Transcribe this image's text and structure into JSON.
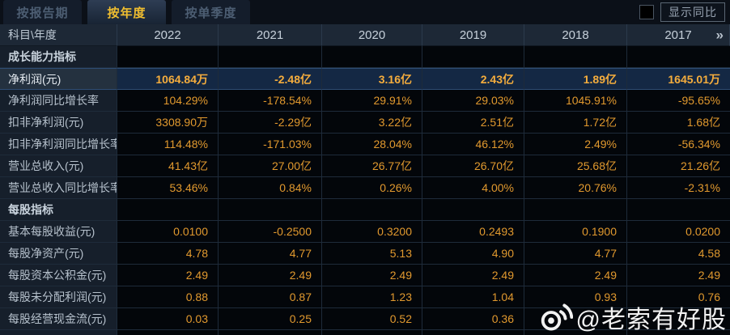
{
  "tabs": [
    {
      "label": "按报告期",
      "active": false
    },
    {
      "label": "按年度",
      "active": true
    },
    {
      "label": "按单季度",
      "active": false
    }
  ],
  "controls": {
    "show_yoy_label": "显示同比"
  },
  "table": {
    "corner_header": "科目\\年度",
    "year_columns": [
      "2022",
      "2021",
      "2020",
      "2019",
      "2018",
      "2017"
    ],
    "more_icon": "»",
    "rows": [
      {
        "type": "section",
        "label": "成长能力指标"
      },
      {
        "type": "data",
        "highlight": true,
        "label": "净利润(元)",
        "values": [
          "1064.84万",
          "-2.48亿",
          "3.16亿",
          "2.43亿",
          "1.89亿",
          "1645.01万"
        ]
      },
      {
        "type": "data",
        "highlight": false,
        "label": "净利润同比增长率",
        "values": [
          "104.29%",
          "-178.54%",
          "29.91%",
          "29.03%",
          "1045.91%",
          "-95.65%"
        ]
      },
      {
        "type": "data",
        "highlight": false,
        "label": "扣非净利润(元)",
        "values": [
          "3308.90万",
          "-2.29亿",
          "3.22亿",
          "2.51亿",
          "1.72亿",
          "1.68亿"
        ]
      },
      {
        "type": "data",
        "highlight": false,
        "label": "扣非净利润同比增长率",
        "values": [
          "114.48%",
          "-171.03%",
          "28.04%",
          "46.12%",
          "2.49%",
          "-56.34%"
        ]
      },
      {
        "type": "data",
        "highlight": false,
        "label": "营业总收入(元)",
        "values": [
          "41.43亿",
          "27.00亿",
          "26.77亿",
          "26.70亿",
          "25.68亿",
          "21.26亿"
        ]
      },
      {
        "type": "data",
        "highlight": false,
        "label": "营业总收入同比增长率",
        "values": [
          "53.46%",
          "0.84%",
          "0.26%",
          "4.00%",
          "20.76%",
          "-2.31%"
        ]
      },
      {
        "type": "section",
        "label": "每股指标"
      },
      {
        "type": "data",
        "highlight": false,
        "label": "基本每股收益(元)",
        "values": [
          "0.0100",
          "-0.2500",
          "0.3200",
          "0.2493",
          "0.1900",
          "0.0200"
        ]
      },
      {
        "type": "data",
        "highlight": false,
        "label": "每股净资产(元)",
        "values": [
          "4.78",
          "4.77",
          "5.13",
          "4.90",
          "4.77",
          "4.58"
        ]
      },
      {
        "type": "data",
        "highlight": false,
        "label": "每股资本公积金(元)",
        "values": [
          "2.49",
          "2.49",
          "2.49",
          "2.49",
          "2.49",
          "2.49"
        ]
      },
      {
        "type": "data",
        "highlight": false,
        "label": "每股未分配利润(元)",
        "values": [
          "0.88",
          "0.87",
          "1.23",
          "1.04",
          "0.93",
          "0.76"
        ]
      },
      {
        "type": "data",
        "highlight": false,
        "label": "每股经营现金流(元)",
        "values": [
          "0.03",
          "0.25",
          "0.52",
          "0.36",
          "",
          ""
        ]
      }
    ]
  },
  "watermark": {
    "icon": "weibo-icon",
    "text": "@老索有好股"
  },
  "colors": {
    "accent_gold": "#f0be30",
    "value_orange": "#e1992e",
    "highlight_row_bg": "#142844",
    "label_bg": "#161f2b",
    "header_bg": "#1d2836",
    "value_bg": "#03060a"
  }
}
